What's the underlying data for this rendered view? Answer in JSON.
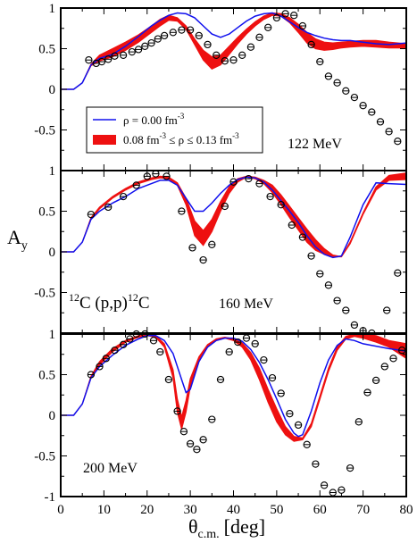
{
  "chart_data": {
    "type": "line",
    "ylabel_main": "A",
    "ylabel_sub": "y",
    "xlabel_main": "θ",
    "xlabel_sub": "c.m.",
    "xlabel_unit": "[deg]",
    "xlim": [
      0,
      80
    ],
    "ylim": [
      -1,
      1
    ],
    "x_ticks": [
      "0",
      "10",
      "20",
      "30",
      "40",
      "50",
      "60",
      "70",
      "80"
    ],
    "y_ticks": [
      "-1",
      "-0.5",
      "0",
      "0.5",
      "1"
    ],
    "legend": {
      "line_label": "ρ = 0.00 fm",
      "line_sup": "-3",
      "band_label_a": "0.08 fm",
      "band_sup_a": "-3",
      "band_label_b": " ≤ ρ ≤ 0.13 fm",
      "band_sup_b": "-3"
    },
    "reaction": {
      "pre": "12",
      "mid": "C (p,p)",
      "post": "12",
      "end": "C"
    },
    "colors": {
      "line": "#1010ee",
      "band": "#ee1010",
      "data": "#000000"
    },
    "panels": [
      {
        "energy_label": "122 MeV",
        "free_line": {
          "x": [
            0,
            3,
            5,
            7,
            9,
            12,
            15,
            18,
            21,
            23,
            25,
            27,
            29,
            31,
            33,
            35,
            37,
            39,
            41,
            43,
            45,
            47,
            49,
            51,
            53,
            55,
            57,
            59,
            61,
            63,
            65,
            67,
            70,
            73,
            76,
            80
          ],
          "y": [
            0,
            0,
            0.08,
            0.3,
            0.38,
            0.43,
            0.53,
            0.65,
            0.78,
            0.85,
            0.91,
            0.94,
            0.93,
            0.88,
            0.78,
            0.68,
            0.64,
            0.68,
            0.76,
            0.84,
            0.9,
            0.93,
            0.94,
            0.9,
            0.83,
            0.76,
            0.7,
            0.66,
            0.63,
            0.61,
            0.6,
            0.6,
            0.58,
            0.56,
            0.55,
            0.57
          ]
        },
        "band_upper": {
          "x": [
            0,
            3,
            5,
            7,
            9,
            12,
            15,
            18,
            21,
            23,
            25,
            27,
            29,
            31,
            33,
            35,
            37,
            39,
            41,
            43,
            45,
            47,
            49,
            51,
            53,
            55,
            57,
            59,
            61,
            63,
            65,
            67,
            70,
            73,
            76,
            80
          ],
          "y": [
            0,
            0,
            0.08,
            0.31,
            0.42,
            0.5,
            0.58,
            0.67,
            0.78,
            0.86,
            0.91,
            0.88,
            0.78,
            0.62,
            0.48,
            0.4,
            0.42,
            0.53,
            0.64,
            0.74,
            0.83,
            0.9,
            0.94,
            0.93,
            0.88,
            0.8,
            0.7,
            0.62,
            0.58,
            0.57,
            0.58,
            0.59,
            0.6,
            0.6,
            0.58,
            0.56
          ]
        },
        "band_lower": {
          "x": [
            0,
            3,
            5,
            7,
            9,
            12,
            15,
            18,
            21,
            23,
            25,
            27,
            29,
            31,
            33,
            35,
            37,
            39,
            41,
            43,
            45,
            47,
            49,
            51,
            53,
            55,
            57,
            59,
            61,
            63,
            65,
            67,
            70,
            73,
            76,
            80
          ],
          "y": [
            0,
            0,
            0.08,
            0.29,
            0.35,
            0.4,
            0.48,
            0.58,
            0.7,
            0.78,
            0.85,
            0.84,
            0.74,
            0.55,
            0.36,
            0.25,
            0.3,
            0.43,
            0.56,
            0.68,
            0.78,
            0.86,
            0.91,
            0.9,
            0.82,
            0.7,
            0.57,
            0.5,
            0.48,
            0.49,
            0.51,
            0.52,
            0.53,
            0.52,
            0.51,
            0.51
          ]
        },
        "data": {
          "x": [
            6.5,
            8.2,
            9.5,
            11,
            12.5,
            14.5,
            16.5,
            18,
            19.5,
            21,
            22.5,
            24,
            26,
            28,
            30,
            32,
            34,
            36,
            38,
            40,
            42,
            44,
            46,
            48,
            50,
            52,
            54,
            56,
            58,
            60,
            62,
            64,
            66,
            68,
            70,
            72,
            74,
            76,
            78
          ],
          "y": [
            0.36,
            0.32,
            0.34,
            0.37,
            0.41,
            0.42,
            0.46,
            0.49,
            0.53,
            0.57,
            0.62,
            0.66,
            0.7,
            0.73,
            0.73,
            0.66,
            0.55,
            0.42,
            0.35,
            0.36,
            0.42,
            0.52,
            0.64,
            0.76,
            0.88,
            0.93,
            0.91,
            0.78,
            0.55,
            0.34,
            0.16,
            0.08,
            -0.02,
            -0.1,
            -0.2,
            -0.28,
            -0.4,
            -0.52,
            -0.64
          ]
        }
      },
      {
        "energy_label": "160 MeV",
        "free_line": {
          "x": [
            0,
            3,
            5,
            7,
            9,
            12,
            15,
            18,
            21,
            23,
            25,
            27,
            29,
            31,
            33,
            35,
            37,
            39,
            41,
            43,
            45,
            47,
            49,
            51,
            53,
            55,
            57,
            59,
            61,
            63,
            65,
            67,
            70,
            73,
            76,
            80
          ],
          "y": [
            0,
            0,
            0.12,
            0.4,
            0.5,
            0.6,
            0.68,
            0.78,
            0.84,
            0.88,
            0.88,
            0.82,
            0.66,
            0.5,
            0.5,
            0.6,
            0.72,
            0.82,
            0.89,
            0.92,
            0.91,
            0.86,
            0.76,
            0.63,
            0.5,
            0.36,
            0.2,
            0.06,
            -0.03,
            -0.07,
            -0.05,
            0.18,
            0.58,
            0.85,
            0.84,
            0.83
          ]
        },
        "band_upper": {
          "x": [
            0,
            3,
            5,
            7,
            9,
            12,
            15,
            18,
            21,
            23,
            25,
            27,
            29,
            31,
            33,
            35,
            37,
            39,
            41,
            43,
            45,
            47,
            49,
            51,
            53,
            55,
            57,
            59,
            61,
            63,
            65,
            67,
            70,
            73,
            76,
            80
          ],
          "y": [
            0,
            0,
            0.12,
            0.42,
            0.55,
            0.68,
            0.78,
            0.86,
            0.91,
            0.93,
            0.92,
            0.85,
            0.66,
            0.38,
            0.26,
            0.4,
            0.62,
            0.8,
            0.9,
            0.93,
            0.92,
            0.88,
            0.82,
            0.7,
            0.56,
            0.42,
            0.28,
            0.15,
            0.04,
            -0.04,
            -0.06,
            0.12,
            0.48,
            0.8,
            0.94,
            0.97
          ]
        },
        "band_lower": {
          "x": [
            0,
            3,
            5,
            7,
            9,
            12,
            15,
            18,
            21,
            23,
            25,
            27,
            29,
            31,
            33,
            35,
            37,
            39,
            41,
            43,
            45,
            47,
            49,
            51,
            53,
            55,
            57,
            59,
            61,
            63,
            65,
            67,
            70,
            73,
            76,
            80
          ],
          "y": [
            0,
            0,
            0.12,
            0.4,
            0.53,
            0.66,
            0.76,
            0.84,
            0.89,
            0.91,
            0.9,
            0.82,
            0.58,
            0.2,
            0.08,
            0.25,
            0.5,
            0.72,
            0.86,
            0.92,
            0.9,
            0.84,
            0.73,
            0.58,
            0.42,
            0.27,
            0.12,
            0.02,
            -0.03,
            -0.06,
            -0.06,
            0.1,
            0.46,
            0.76,
            0.88,
            0.89
          ]
        },
        "data": {
          "x": [
            7,
            11,
            14.5,
            17.5,
            20,
            22,
            24.5,
            28,
            30.5,
            33,
            35,
            38,
            40,
            43.5,
            46,
            48.5,
            51,
            53.5,
            56,
            58,
            60,
            62,
            64,
            66,
            68,
            70,
            72,
            75.5,
            78
          ],
          "y": [
            0.46,
            0.55,
            0.68,
            0.82,
            0.93,
            0.96,
            0.93,
            0.5,
            0.05,
            -0.1,
            0.09,
            0.56,
            0.86,
            0.9,
            0.84,
            0.68,
            0.58,
            0.33,
            0.18,
            -0.05,
            -0.27,
            -0.41,
            -0.6,
            -0.72,
            -0.9,
            -0.97,
            -1.0,
            -0.72,
            -0.26
          ]
        }
      },
      {
        "energy_label": "200 MeV",
        "free_line": {
          "x": [
            0,
            3,
            5,
            7,
            9,
            12,
            15,
            18,
            20,
            22,
            24,
            26,
            28,
            29,
            30,
            32,
            34,
            36,
            38,
            40,
            42,
            44,
            46,
            48,
            50,
            52,
            54,
            55,
            56,
            58,
            60,
            62,
            64,
            66,
            68,
            70,
            73,
            76,
            80
          ],
          "y": [
            0,
            0,
            0.14,
            0.46,
            0.6,
            0.74,
            0.86,
            0.94,
            0.98,
            0.98,
            0.92,
            0.76,
            0.44,
            0.28,
            0.32,
            0.66,
            0.84,
            0.92,
            0.95,
            0.95,
            0.91,
            0.81,
            0.65,
            0.44,
            0.2,
            -0.05,
            -0.22,
            -0.26,
            -0.24,
            0.05,
            0.4,
            0.68,
            0.86,
            0.94,
            0.92,
            0.88,
            0.85,
            0.82,
            0.79
          ]
        },
        "band_upper": {
          "x": [
            0,
            3,
            5,
            7,
            9,
            12,
            15,
            18,
            20,
            22,
            24,
            26,
            27,
            28,
            29,
            30,
            32,
            34,
            36,
            38,
            40,
            42,
            44,
            46,
            48,
            50,
            52,
            54,
            56,
            58,
            60,
            62,
            64,
            66,
            68,
            70,
            73,
            76,
            80
          ],
          "y": [
            0,
            0,
            0.14,
            0.48,
            0.66,
            0.82,
            0.92,
            0.98,
            1.0,
            0.98,
            0.88,
            0.56,
            0.2,
            -0.02,
            0.18,
            0.45,
            0.72,
            0.87,
            0.94,
            0.96,
            0.94,
            0.89,
            0.77,
            0.58,
            0.32,
            0.08,
            -0.14,
            -0.26,
            -0.28,
            -0.1,
            0.24,
            0.58,
            0.84,
            0.97,
            1.0,
            1.0,
            0.98,
            0.92,
            0.88
          ]
        },
        "band_lower": {
          "x": [
            0,
            3,
            5,
            7,
            9,
            12,
            15,
            18,
            20,
            22,
            24,
            26,
            27,
            28,
            29,
            30,
            32,
            34,
            36,
            38,
            40,
            42,
            44,
            46,
            48,
            50,
            52,
            54,
            56,
            58,
            60,
            62,
            64,
            66,
            68,
            70,
            73,
            76,
            80
          ],
          "y": [
            0,
            0,
            0.14,
            0.46,
            0.62,
            0.78,
            0.9,
            0.96,
            0.98,
            0.96,
            0.84,
            0.46,
            0.04,
            -0.17,
            0.04,
            0.35,
            0.66,
            0.84,
            0.92,
            0.95,
            0.92,
            0.84,
            0.68,
            0.44,
            0.16,
            -0.08,
            -0.24,
            -0.32,
            -0.3,
            -0.14,
            0.2,
            0.54,
            0.8,
            0.94,
            0.97,
            0.95,
            0.9,
            0.84,
            0.7
          ]
        },
        "data": {
          "x": [
            7,
            9,
            10.5,
            12.5,
            14.5,
            16,
            17.5,
            19.5,
            21.5,
            23,
            25,
            27,
            28.5,
            30,
            31.5,
            33,
            35,
            37,
            39,
            41,
            43,
            45,
            47,
            49,
            51,
            53,
            55,
            57,
            59,
            61,
            63,
            65,
            67,
            69,
            71,
            73,
            75,
            77,
            79
          ],
          "y": [
            0.5,
            0.6,
            0.7,
            0.8,
            0.87,
            0.94,
            1.0,
            1.0,
            0.92,
            0.78,
            0.44,
            0.05,
            -0.2,
            -0.35,
            -0.42,
            -0.3,
            -0.05,
            0.44,
            0.78,
            0.9,
            0.95,
            0.88,
            0.68,
            0.46,
            0.27,
            0.02,
            -0.12,
            -0.36,
            -0.6,
            -0.86,
            -0.95,
            -0.92,
            -0.65,
            -0.08,
            0.28,
            0.43,
            0.6,
            0.7,
            0.8
          ]
        }
      }
    ]
  }
}
